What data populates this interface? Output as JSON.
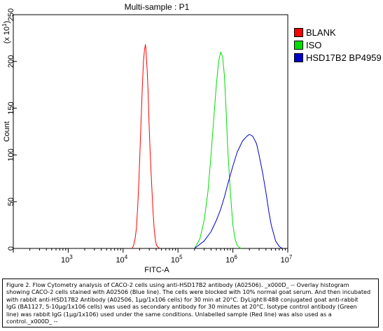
{
  "chart_data": {
    "type": "line",
    "title": "Multi-sample : P1",
    "xlabel": "FITC-A",
    "ylabel": "Count",
    "y_scale_label": "(x 10",
    "y_scale_exp": "1",
    "y_scale_close": ")",
    "x_scale": "log",
    "xlim": [
      100,
      10000000
    ],
    "ylim": [
      0,
      250
    ],
    "x_ticks": [
      {
        "base": "10",
        "exp": "3",
        "value": 1000
      },
      {
        "base": "10",
        "exp": "4",
        "value": 10000
      },
      {
        "base": "10",
        "exp": "5",
        "value": 100000
      },
      {
        "base": "10",
        "exp": "6",
        "value": 1000000
      },
      {
        "base": "10",
        "exp": "7",
        "value": 10000000
      }
    ],
    "y_ticks": [
      "0",
      "50",
      "100",
      "150",
      "200",
      "250"
    ],
    "legend_position": "right",
    "series": [
      {
        "name": "BLANK",
        "color": "#ff0000",
        "x": [
          14500,
          15500,
          16500,
          17500,
          18500,
          19500,
          20500,
          21500,
          22500,
          23500,
          24500,
          25500,
          26000,
          26500,
          27500,
          28500,
          29500,
          31000,
          33000,
          35000,
          37000,
          39000,
          41000,
          44000,
          47000
        ],
        "y": [
          0,
          3,
          10,
          22,
          45,
          75,
          110,
          145,
          175,
          200,
          212,
          218,
          214,
          205,
          190,
          168,
          140,
          105,
          70,
          40,
          20,
          8,
          3,
          1,
          0
        ]
      },
      {
        "name": "ISO",
        "color": "#00dd00",
        "x": [
          200000,
          250000,
          300000,
          350000,
          400000,
          450000,
          500000,
          550000,
          600000,
          650000,
          700000,
          750000,
          800000,
          900000,
          1000000,
          1100000,
          1200000,
          1400000
        ],
        "y": [
          0,
          10,
          30,
          60,
          100,
          140,
          175,
          200,
          210,
          205,
          185,
          150,
          110,
          60,
          25,
          10,
          3,
          0
        ]
      },
      {
        "name": "HSD17B2 BP4959",
        "color": "#0000cc",
        "x": [
          200000,
          300000,
          400000,
          500000,
          600000,
          700000,
          800000,
          1000000,
          1200000,
          1500000,
          1800000,
          2000000,
          2300000,
          2700000,
          3000000,
          3500000,
          4000000,
          4500000,
          5000000,
          6000000,
          7000000,
          8000000
        ],
        "y": [
          0,
          8,
          18,
          30,
          42,
          55,
          68,
          88,
          103,
          115,
          120,
          122,
          120,
          112,
          100,
          80,
          60,
          40,
          25,
          8,
          2,
          0
        ]
      }
    ]
  },
  "caption": {
    "lines": [
      "Figure 2. Flow Cytometry analysis of CACO-2 cells using anti-HSD17B2 antibody (A02506). _x000D_ -- Overlay histogram",
      "showing CACO-2 cells stained with A02506 (Blue line). The cells were blocked with 10% normal goat serum. And then incubated",
      "with rabbit anti-HSD17B2 Antibody (A02506, 1μg/1x106 cells) for 30 min at 20°C. DyLight®488 conjugated goat anti-rabbit",
      "IgG (BA1127, 5-10μg/1x106 cells) was used as secondary antibody for 30 minutes at 20°C. Isotype control antibody (Green",
      "line) was rabbit IgG (1μg/1x106) used under the same conditions. Unlabelled sample (Red line) was also used as a",
      "control._x000D_ --"
    ]
  }
}
